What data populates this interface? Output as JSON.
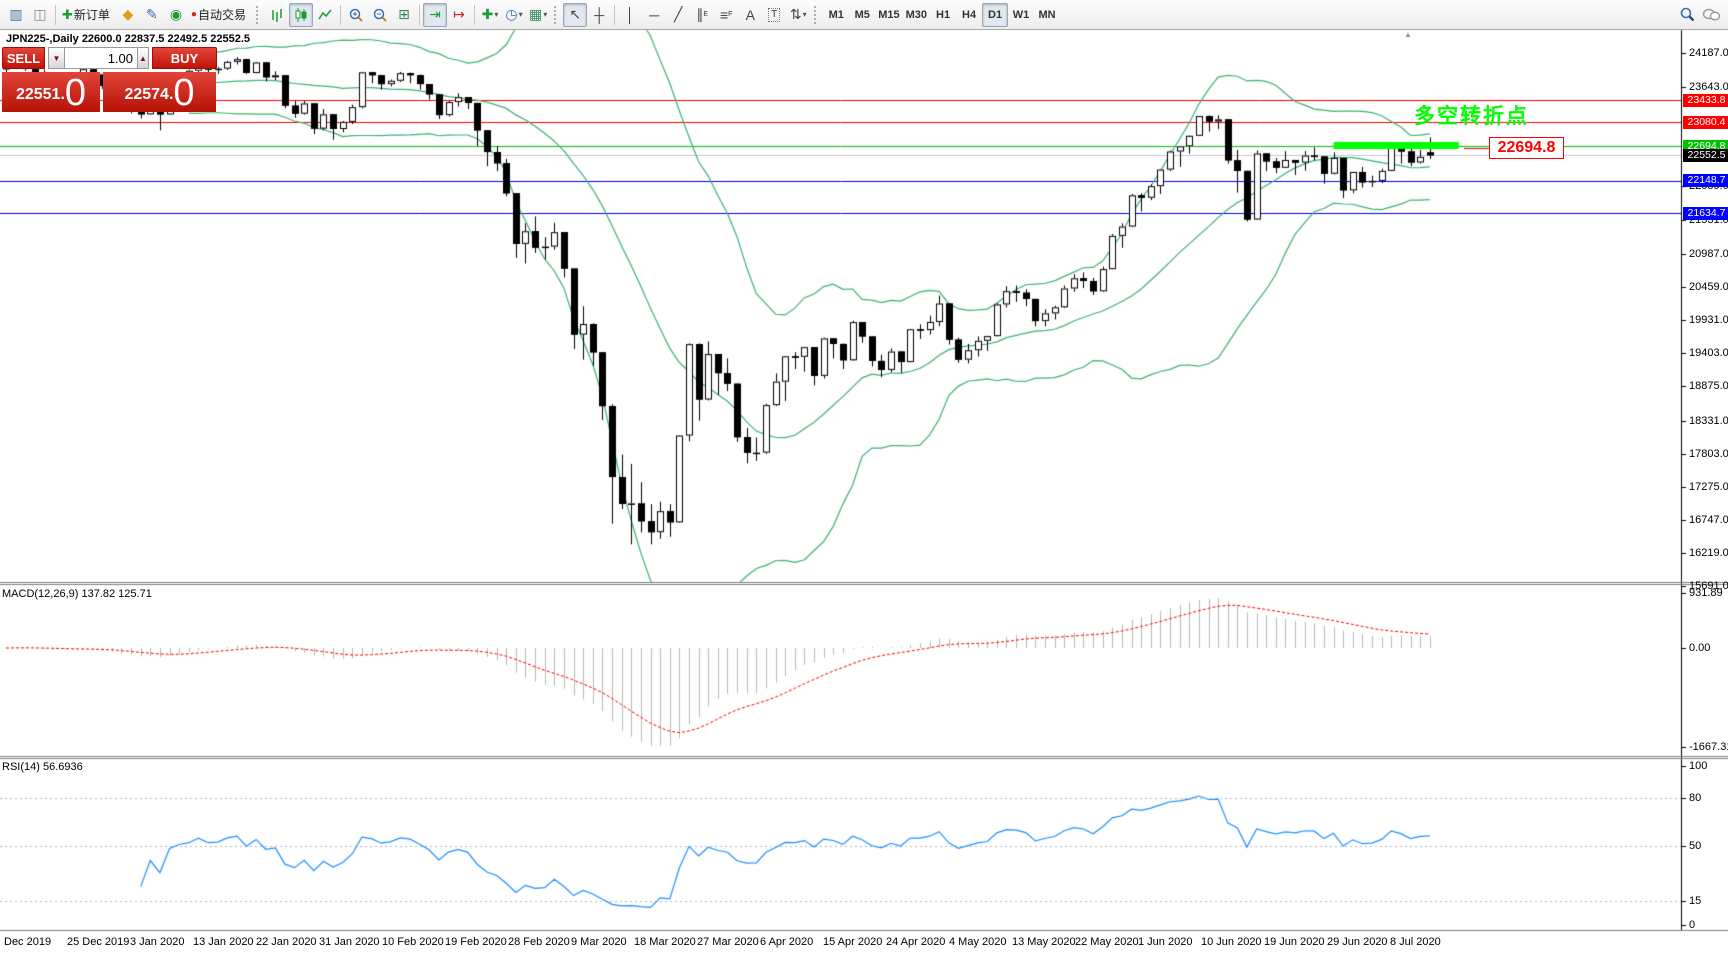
{
  "toolbar": {
    "new_order_label": "新订单",
    "autotrading_label": "自动交易",
    "timeframes": [
      "M1",
      "M5",
      "M15",
      "M30",
      "H1",
      "H4",
      "D1",
      "W1",
      "MN"
    ],
    "active_timeframe": "D1",
    "icons": {
      "chart_window": "▥",
      "navigator": "◫",
      "metaquotes": "◆",
      "metaeditor": "✎",
      "signal": "◉",
      "autotrading_dot": "●",
      "tile_windows": "⊞",
      "autoscroll": "⇥",
      "chart_shift": "↦",
      "indicators": "✚",
      "periods": "◷",
      "templates": "▦",
      "cursor": "↖",
      "crosshair": "┼",
      "vertical_line": "│",
      "horizontal_line": "─",
      "trendline": "╱",
      "channel": "∥",
      "fibonacci": "≡",
      "text": "A",
      "text_label": "T",
      "arrows": "⇅",
      "dropdown": "▾",
      "new_order_plus": "✚"
    }
  },
  "chart": {
    "title": "JPN225-,Daily  22600.0 22837.5 22492.5 22552.5",
    "symbol": "JPN225-",
    "period": "Daily",
    "open": "22600.0",
    "high": "22837.5",
    "low": "22492.5",
    "close": "22552.5"
  },
  "trade_panel": {
    "sell_label": "SELL",
    "buy_label": "BUY",
    "volume": "1.00",
    "bid_main": "22551",
    "bid_big": "0",
    "ask_main": "22574",
    "ask_big": "0"
  },
  "indicator_labels": {
    "macd": "MACD(12,26,9) 137.82 125.71",
    "rsi": "RSI(14) 56.6936"
  },
  "annotation": {
    "text": "多空转折点",
    "callout": "22694.8"
  },
  "chart_data": {
    "type": "candlestick",
    "title": "JPN225 Daily",
    "price_axis_ticks": [
      "24187.0",
      "23643.0",
      "22059.0",
      "21531.0",
      "20987.0",
      "20459.0",
      "19931.0",
      "19403.0",
      "18875.0",
      "18331.0",
      "17803.0",
      "17275.0",
      "16747.0",
      "16219.0",
      "15691.0"
    ],
    "x_labels": [
      "Dec 2019",
      "25 Dec 2019",
      "3 Jan 2020",
      "13 Jan 2020",
      "22 Jan 2020",
      "31 Jan 2020",
      "10 Feb 2020",
      "19 Feb 2020",
      "28 Feb 2020",
      "9 Mar 2020",
      "18 Mar 2020",
      "27 Mar 2020",
      "6 Apr 2020",
      "15 Apr 2020",
      "24 Apr 2020",
      "4 May 2020",
      "13 May 2020",
      "22 May 2020",
      "1 Jun 2020",
      "10 Jun 2020",
      "19 Jun 2020",
      "29 Jun 2020",
      "8 Jul 2020"
    ],
    "levels": [
      {
        "price": 23433.8,
        "color": "#ff0000",
        "badge": "23433.8",
        "badge_bg": "#ff0000"
      },
      {
        "price": 23080.4,
        "color": "#ff0000",
        "badge": "23080.4",
        "badge_bg": "#ff0000"
      },
      {
        "price": 22694.8,
        "color": "#00c000",
        "badge": "22694.8",
        "badge_bg": "#00c000"
      },
      {
        "price": 22148.7,
        "color": "#0000ff",
        "badge": "22148.7",
        "badge_bg": "#0000ff"
      },
      {
        "price": 21634.7,
        "color": "#0000ff",
        "badge": "21634.7",
        "badge_bg": "#0000ff"
      }
    ],
    "last_price": {
      "value": 22552.5,
      "badge": "22552.5",
      "line_color": "#c8c8c8",
      "badge_bg": "#000000"
    },
    "support_bar": {
      "price": 22709,
      "i1": 138,
      "i2": 151,
      "color": "#00ff00",
      "thickness": 7
    },
    "indicators": {
      "bollinger": {
        "period": 20,
        "deviation": 2,
        "color": "#3cb371"
      },
      "macd": {
        "fast": 12,
        "slow": 26,
        "signal_period": 9,
        "value": 137.82,
        "signal_value": 125.71,
        "axis_ticks": [
          "931.89",
          "0.00",
          "-1667.31"
        ],
        "axis_values": [
          931.89,
          0,
          -1667.31
        ],
        "hist_color": "#b8b8b8",
        "signal_color": "#ff0000"
      },
      "rsi": {
        "period": 14,
        "value": 56.6936,
        "axis_ticks": [
          "100",
          "80",
          "50",
          "15",
          "0"
        ],
        "axis_values": [
          100,
          80,
          50,
          15,
          0
        ],
        "dashed_levels": [
          80,
          50,
          15
        ],
        "color": "#1e90ff"
      }
    },
    "candles": [
      [
        23920,
        24000,
        23870,
        23952
      ],
      [
        23952,
        24090,
        23930,
        24066
      ],
      [
        24066,
        24070,
        23900,
        23934
      ],
      [
        23934,
        23960,
        23820,
        23864
      ],
      [
        23864,
        23920,
        23780,
        23817
      ],
      [
        23817,
        23860,
        23770,
        23821
      ],
      [
        23821,
        23850,
        23780,
        23830
      ],
      [
        23830,
        23840,
        23760,
        23783
      ],
      [
        23783,
        23940,
        23770,
        23925
      ],
      [
        23925,
        23950,
        23800,
        23838
      ],
      [
        23838,
        23840,
        23610,
        23657
      ],
      [
        23657,
        23690,
        23590,
        23650
      ],
      [
        23650,
        23660,
        23280,
        23320
      ],
      [
        23320,
        23450,
        23220,
        23400
      ],
      [
        23400,
        23420,
        23140,
        23205
      ],
      [
        23205,
        23620,
        23200,
        23575
      ],
      [
        23575,
        23590,
        22950,
        23204
      ],
      [
        23204,
        23770,
        23200,
        23740
      ],
      [
        23740,
        23880,
        23720,
        23851
      ],
      [
        23851,
        23920,
        23820,
        23900
      ],
      [
        23900,
        24050,
        23880,
        24025
      ],
      [
        24025,
        24040,
        23870,
        23917
      ],
      [
        23917,
        23960,
        23850,
        23933
      ],
      [
        23933,
        24060,
        23910,
        24041
      ],
      [
        24041,
        24115,
        24000,
        24084
      ],
      [
        24084,
        24090,
        23850,
        23864
      ],
      [
        23864,
        24040,
        23860,
        24031
      ],
      [
        24031,
        24040,
        23730,
        23795
      ],
      [
        23795,
        23890,
        23750,
        23827
      ],
      [
        23827,
        23830,
        23300,
        23344
      ],
      [
        23344,
        23420,
        23150,
        23216
      ],
      [
        23216,
        23420,
        23200,
        23379
      ],
      [
        23379,
        23380,
        22890,
        22978
      ],
      [
        22978,
        23290,
        22950,
        23205
      ],
      [
        23205,
        23210,
        22800,
        22972
      ],
      [
        22972,
        23100,
        22920,
        23085
      ],
      [
        23085,
        23360,
        23050,
        23320
      ],
      [
        23320,
        23880,
        23300,
        23874
      ],
      [
        23874,
        23880,
        23700,
        23828
      ],
      [
        23828,
        23830,
        23600,
        23686
      ],
      [
        23686,
        23760,
        23650,
        23740
      ],
      [
        23740,
        23880,
        23720,
        23861
      ],
      [
        23861,
        23870,
        23700,
        23828
      ],
      [
        23828,
        23840,
        23600,
        23687
      ],
      [
        23687,
        23690,
        23440,
        23523
      ],
      [
        23523,
        23530,
        23130,
        23193
      ],
      [
        23193,
        23420,
        23170,
        23401
      ],
      [
        23401,
        23540,
        23330,
        23479
      ],
      [
        23479,
        23480,
        23290,
        23387
      ],
      [
        23387,
        23390,
        22700,
        22950
      ],
      [
        22950,
        22950,
        22380,
        22605
      ],
      [
        22605,
        22700,
        22300,
        22426
      ],
      [
        22426,
        22500,
        21900,
        21948
      ],
      [
        21948,
        21950,
        20920,
        21143
      ],
      [
        21143,
        21470,
        20830,
        21344
      ],
      [
        21344,
        21580,
        21000,
        21083
      ],
      [
        21083,
        21250,
        20900,
        21100
      ],
      [
        21100,
        21480,
        21050,
        21329
      ],
      [
        21329,
        21330,
        20610,
        20750
      ],
      [
        20750,
        20750,
        19470,
        19699
      ],
      [
        19699,
        20150,
        19300,
        19867
      ],
      [
        19867,
        19880,
        19200,
        19416
      ],
      [
        19416,
        19420,
        18340,
        18560
      ],
      [
        18560,
        18590,
        16690,
        17431
      ],
      [
        17431,
        17790,
        16920,
        17002
      ],
      [
        17002,
        17640,
        16360,
        17011
      ],
      [
        17011,
        17350,
        16550,
        16727
      ],
      [
        16727,
        17000,
        16360,
        16553
      ],
      [
        16553,
        17040,
        16450,
        16888
      ],
      [
        16888,
        17000,
        16480,
        16710
      ],
      [
        16710,
        18100,
        16700,
        18092
      ],
      [
        18092,
        19560,
        18000,
        19547
      ],
      [
        19547,
        19560,
        18330,
        18665
      ],
      [
        18665,
        19590,
        18650,
        19389
      ],
      [
        19389,
        19390,
        18740,
        19085
      ],
      [
        19085,
        19320,
        18800,
        18917
      ],
      [
        18917,
        18920,
        17990,
        18065
      ],
      [
        18065,
        18210,
        17650,
        17818
      ],
      [
        17818,
        18060,
        17690,
        17820
      ],
      [
        17820,
        18600,
        17800,
        18576
      ],
      [
        18576,
        19080,
        18560,
        18950
      ],
      [
        18950,
        19360,
        18640,
        19353
      ],
      [
        19353,
        19420,
        19150,
        19346
      ],
      [
        19346,
        19500,
        19110,
        19499
      ],
      [
        19499,
        19500,
        18890,
        19043
      ],
      [
        19043,
        19650,
        19000,
        19638
      ],
      [
        19638,
        19640,
        19320,
        19550
      ],
      [
        19550,
        19560,
        19150,
        19290
      ],
      [
        19290,
        19920,
        19280,
        19897
      ],
      [
        19897,
        19900,
        19570,
        19669
      ],
      [
        19669,
        19670,
        19190,
        19280
      ],
      [
        19280,
        19380,
        19020,
        19137
      ],
      [
        19137,
        19480,
        19100,
        19429
      ],
      [
        19429,
        19430,
        19090,
        19262
      ],
      [
        19262,
        19790,
        19260,
        19783
      ],
      [
        19783,
        19860,
        19630,
        19771
      ],
      [
        19771,
        20000,
        19700,
        19900
      ],
      [
        19900,
        20320,
        19830,
        20194
      ],
      [
        20194,
        20200,
        19540,
        19619
      ],
      [
        19619,
        19650,
        19250,
        19300
      ],
      [
        19300,
        19550,
        19240,
        19450
      ],
      [
        19450,
        19670,
        19350,
        19600
      ],
      [
        19600,
        19680,
        19440,
        19674
      ],
      [
        19674,
        20200,
        19670,
        20179
      ],
      [
        20179,
        20470,
        20130,
        20390
      ],
      [
        20390,
        20480,
        20220,
        20366
      ],
      [
        20366,
        20420,
        20150,
        20267
      ],
      [
        20267,
        20270,
        19830,
        19914
      ],
      [
        19914,
        20100,
        19830,
        20037
      ],
      [
        20037,
        20160,
        19940,
        20133
      ],
      [
        20133,
        20480,
        20120,
        20433
      ],
      [
        20433,
        20660,
        20380,
        20595
      ],
      [
        20595,
        20690,
        20440,
        20552
      ],
      [
        20552,
        20600,
        20330,
        20388
      ],
      [
        20388,
        20780,
        20380,
        20741
      ],
      [
        20741,
        21300,
        20740,
        21271
      ],
      [
        21271,
        21470,
        21080,
        21419
      ],
      [
        21419,
        21940,
        21410,
        21916
      ],
      [
        21916,
        21950,
        21660,
        21878
      ],
      [
        21878,
        22090,
        21840,
        22062
      ],
      [
        22062,
        22330,
        21940,
        22326
      ],
      [
        22326,
        22630,
        22300,
        22614
      ],
      [
        22614,
        22700,
        22370,
        22696
      ],
      [
        22696,
        22870,
        22580,
        22864
      ],
      [
        22864,
        23180,
        22860,
        23178
      ],
      [
        23178,
        23190,
        22930,
        23091
      ],
      [
        23091,
        23190,
        22970,
        23125
      ],
      [
        23125,
        23130,
        22420,
        22473
      ],
      [
        22473,
        22640,
        21960,
        22305
      ],
      [
        22305,
        22310,
        21500,
        21531
      ],
      [
        21531,
        22630,
        21530,
        22582
      ],
      [
        22582,
        22590,
        22300,
        22456
      ],
      [
        22456,
        22510,
        22270,
        22355
      ],
      [
        22355,
        22620,
        22350,
        22479
      ],
      [
        22479,
        22480,
        22240,
        22437
      ],
      [
        22437,
        22620,
        22310,
        22549
      ],
      [
        22549,
        22680,
        22470,
        22534
      ],
      [
        22534,
        22540,
        22100,
        22260
      ],
      [
        22260,
        22600,
        22250,
        22512
      ],
      [
        22512,
        22510,
        21870,
        21995
      ],
      [
        21995,
        22290,
        21950,
        22288
      ],
      [
        22288,
        22370,
        22040,
        22122
      ],
      [
        22122,
        22230,
        22050,
        22146
      ],
      [
        22146,
        22340,
        22110,
        22306
      ],
      [
        22306,
        22720,
        22300,
        22714
      ],
      [
        22714,
        22720,
        22420,
        22614
      ],
      [
        22614,
        22660,
        22380,
        22439
      ],
      [
        22439,
        22640,
        22420,
        22529
      ],
      [
        22600,
        22838,
        22493,
        22553
      ]
    ]
  }
}
